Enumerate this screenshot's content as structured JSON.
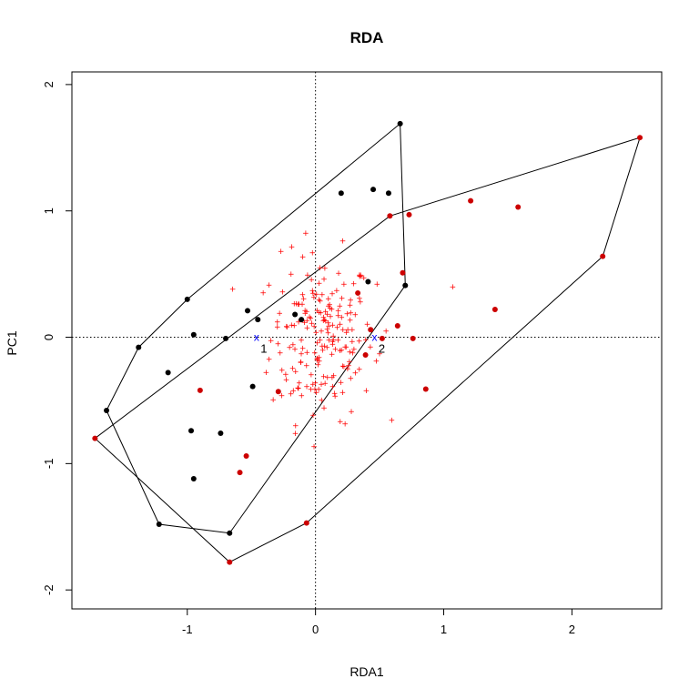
{
  "chart_data": {
    "type": "scatter",
    "title": "RDA",
    "xlabel": "RDA1",
    "ylabel": "PC1",
    "xlim": [
      -1.9,
      2.7
    ],
    "ylim": [
      -2.15,
      2.1
    ],
    "xticks": [
      -1,
      0,
      1,
      2
    ],
    "yticks": [
      -2,
      -1,
      0,
      1,
      2
    ],
    "reference_lines": {
      "x": 0,
      "y": 0,
      "style": "dotted"
    },
    "groups": [
      {
        "color": "#000000",
        "points": [
          [
            0.66,
            1.69
          ],
          [
            0.45,
            1.17
          ],
          [
            0.57,
            1.14
          ],
          [
            0.2,
            1.14
          ],
          [
            0.41,
            0.44
          ],
          [
            0.7,
            0.41
          ],
          [
            -1.0,
            0.3
          ],
          [
            -0.53,
            0.21
          ],
          [
            -0.45,
            0.14
          ],
          [
            -0.16,
            0.18
          ],
          [
            -0.11,
            0.14
          ],
          [
            -0.95,
            0.02
          ],
          [
            -0.7,
            -0.01
          ],
          [
            -1.38,
            -0.08
          ],
          [
            -1.15,
            -0.28
          ],
          [
            -0.49,
            -0.39
          ],
          [
            -1.63,
            -0.58
          ],
          [
            -0.97,
            -0.74
          ],
          [
            -0.74,
            -0.76
          ],
          [
            -0.95,
            -1.12
          ],
          [
            -1.22,
            -1.48
          ],
          [
            -0.67,
            -1.55
          ]
        ],
        "hull": [
          [
            0.66,
            1.69
          ],
          [
            0.7,
            0.41
          ],
          [
            -0.67,
            -1.55
          ],
          [
            -1.22,
            -1.48
          ],
          [
            -1.63,
            -0.58
          ],
          [
            -1.38,
            -0.08
          ],
          [
            -1.0,
            0.3
          ]
        ]
      },
      {
        "color": "#cc0000",
        "points": [
          [
            2.53,
            1.58
          ],
          [
            1.21,
            1.08
          ],
          [
            1.58,
            1.03
          ],
          [
            0.58,
            0.96
          ],
          [
            0.73,
            0.97
          ],
          [
            2.24,
            0.64
          ],
          [
            0.68,
            0.51
          ],
          [
            0.33,
            0.35
          ],
          [
            1.4,
            0.22
          ],
          [
            0.64,
            0.09
          ],
          [
            0.43,
            0.06
          ],
          [
            0.52,
            -0.01
          ],
          [
            0.76,
            -0.01
          ],
          [
            0.39,
            -0.14
          ],
          [
            -0.29,
            -0.43
          ],
          [
            -0.9,
            -0.42
          ],
          [
            0.86,
            -0.41
          ],
          [
            -1.72,
            -0.8
          ],
          [
            -0.54,
            -0.94
          ],
          [
            -0.59,
            -1.07
          ],
          [
            -0.07,
            -1.47
          ],
          [
            -0.67,
            -1.78
          ]
        ],
        "hull": [
          [
            2.53,
            1.58
          ],
          [
            2.24,
            0.64
          ],
          [
            -0.07,
            -1.47
          ],
          [
            -0.67,
            -1.78
          ],
          [
            -1.72,
            -0.8
          ],
          [
            0.58,
            0.96
          ]
        ]
      }
    ],
    "species_points": {
      "color": "#ff0000",
      "marker": "+",
      "count": 200,
      "center": [
        0.05,
        0.0
      ],
      "spread": [
        0.2,
        0.33
      ],
      "outliers": [
        [
          1.07,
          0.4
        ],
        [
          0.48,
          0.42
        ],
        [
          -0.27,
          0.68
        ],
        [
          0.55,
          0.05
        ]
      ]
    },
    "centroids": [
      {
        "label": "1",
        "x": -0.46,
        "y": 0.0,
        "color": "#0000ff"
      },
      {
        "label": "2",
        "x": 0.46,
        "y": 0.0,
        "color": "#0000ff"
      }
    ]
  }
}
